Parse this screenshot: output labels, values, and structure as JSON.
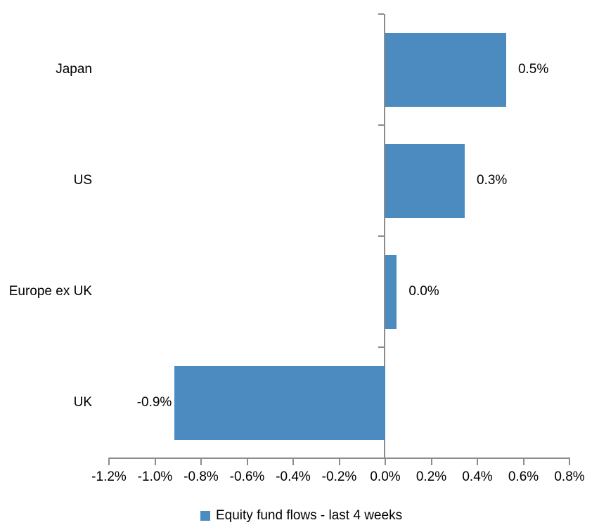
{
  "chart_data": {
    "type": "bar",
    "orientation": "horizontal",
    "title": "",
    "legend": "Equity fund flows - last 4 weeks",
    "legend_position": "bottom-center",
    "unit": "%",
    "grid": false,
    "xlim": [
      -1.2,
      0.8
    ],
    "x_tick_values": [
      -1.2,
      -1.0,
      -0.8,
      -0.6,
      -0.4,
      -0.2,
      0.0,
      0.2,
      0.4,
      0.6,
      0.8
    ],
    "x_tick_labels": [
      "-1.2%",
      "-1.0%",
      "-0.8%",
      "-0.6%",
      "-0.4%",
      "-0.2%",
      "0.0%",
      "0.2%",
      "0.4%",
      "0.6%",
      "0.8%"
    ],
    "categories": [
      "Japan",
      "US",
      "Europe ex UK",
      "UK"
    ],
    "values": [
      0.5,
      0.3,
      0.0,
      -0.9
    ],
    "value_labels": [
      "0.5%",
      "0.3%",
      "0.0%",
      "-0.9%"
    ],
    "bar_extent_estimates": [
      0.525,
      0.345,
      0.05,
      -0.915
    ],
    "colors": {
      "bar": "#4C8BC0",
      "axis": "#8C8C8C",
      "text": "#000000",
      "background": "#FFFFFF"
    }
  }
}
